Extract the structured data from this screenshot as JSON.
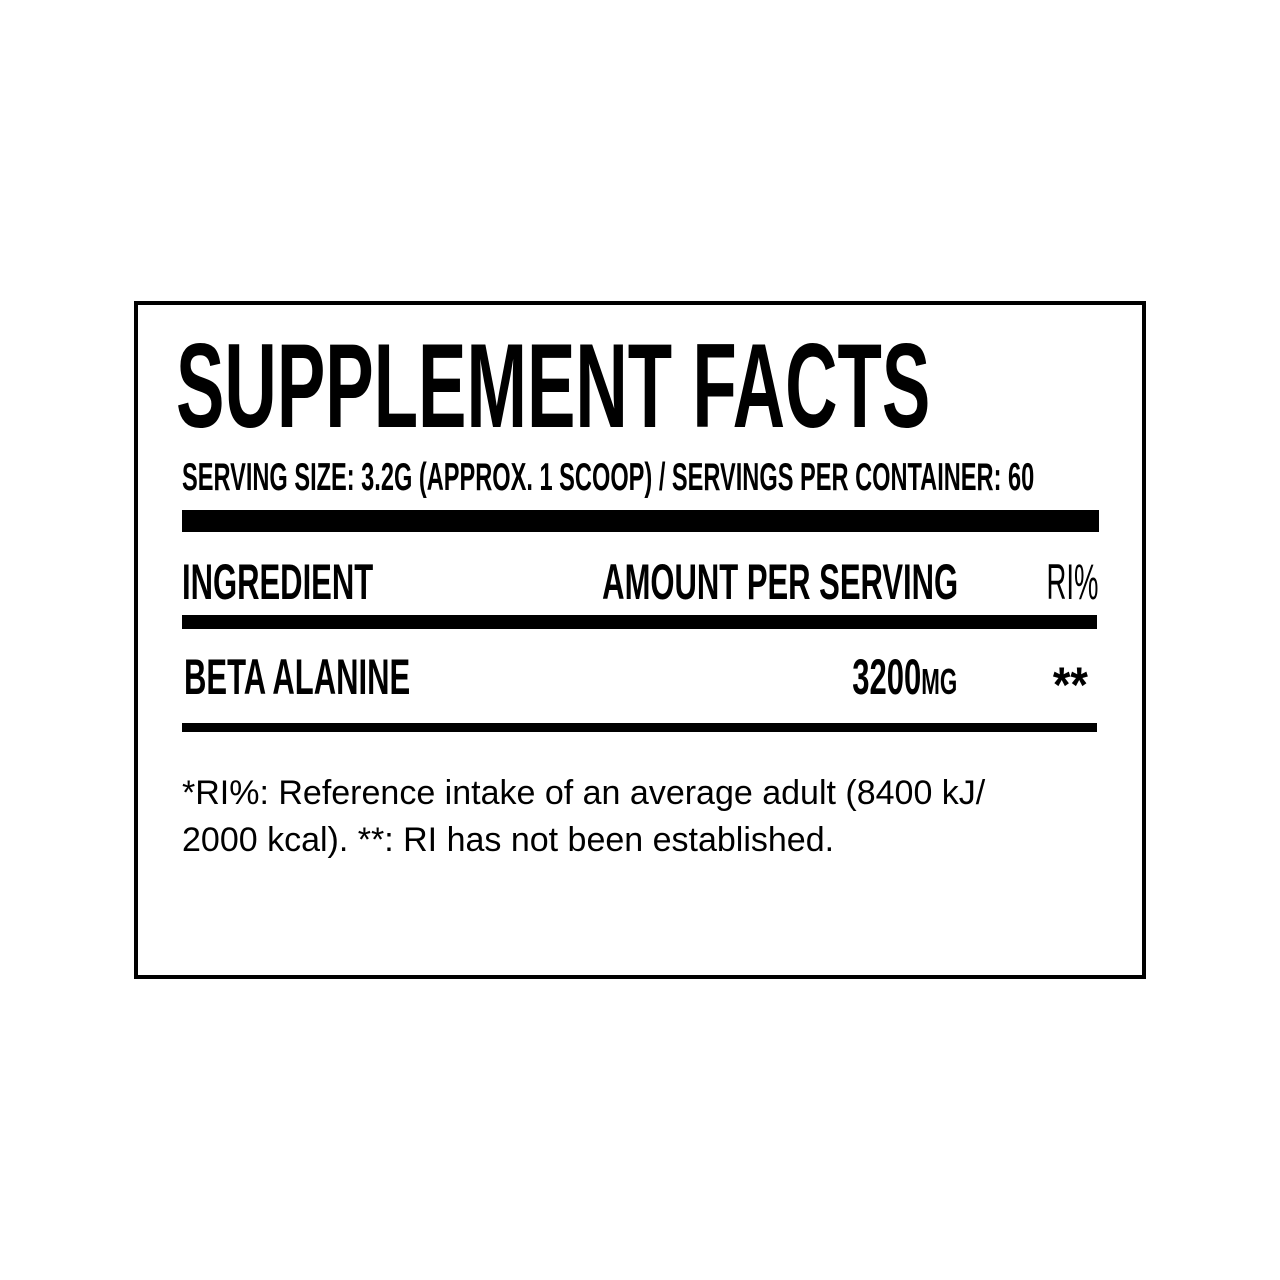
{
  "title": "SUPPLEMENT FACTS",
  "serving_line": "SERVING SIZE: 3.2G (APPROX. 1 SCOOP) / SERVINGS PER CONTAINER: 60",
  "table": {
    "headers": {
      "ingredient": "INGREDIENT",
      "amount": "AMOUNT PER SERVING",
      "ri": "RI%"
    },
    "rows": [
      {
        "ingredient": "BETA ALANINE",
        "amount": "3200",
        "unit": "MG",
        "ri": "**"
      }
    ]
  },
  "footnote": "*RI%: Reference intake of an average adult (8400 kJ/ 2000 kcal). **: RI has not been established."
}
